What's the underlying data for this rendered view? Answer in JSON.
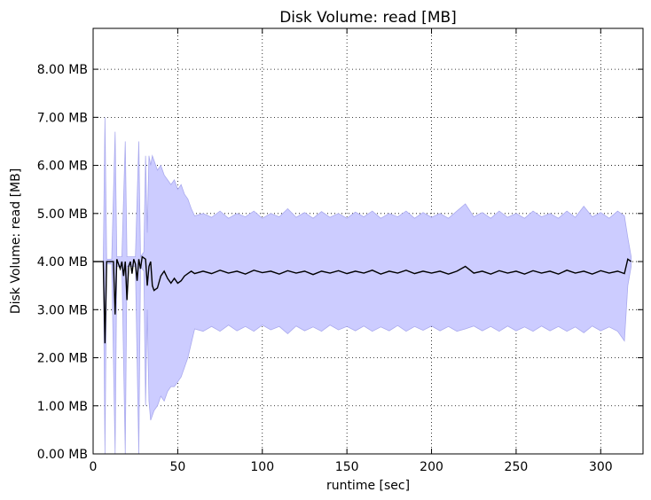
{
  "chart_data": {
    "type": "line",
    "title": "Disk Volume: read [MB]",
    "xlabel": "runtime [sec]",
    "ylabel": "Disk Volume: read [MB]",
    "xlim": [
      0,
      325
    ],
    "ylim": [
      0,
      8.85
    ],
    "xticks": [
      0,
      50,
      100,
      150,
      200,
      250,
      300
    ],
    "xtick_labels": [
      "0",
      "50",
      "100",
      "150",
      "200",
      "250",
      "300"
    ],
    "yticks": [
      0,
      1,
      2,
      3,
      4,
      5,
      6,
      7,
      8
    ],
    "ytick_labels": [
      "0.00 MB",
      "1.00 MB",
      "2.00 MB",
      "3.00 MB",
      "4.00 MB",
      "5.00 MB",
      "6.00 MB",
      "7.00 MB",
      "8.00 MB"
    ],
    "grid": true,
    "series": [
      {
        "role": "mean",
        "color": "#000000",
        "points": [
          [
            0,
            4.0
          ],
          [
            6,
            4.0
          ],
          [
            7,
            2.3
          ],
          [
            8,
            4.0
          ],
          [
            12,
            4.0
          ],
          [
            13,
            2.9
          ],
          [
            14,
            4.05
          ],
          [
            16,
            3.85
          ],
          [
            17,
            4.0
          ],
          [
            18,
            3.7
          ],
          [
            19,
            4.0
          ],
          [
            20,
            3.2
          ],
          [
            21,
            3.9
          ],
          [
            22,
            4.0
          ],
          [
            23,
            3.75
          ],
          [
            24,
            4.05
          ],
          [
            25,
            3.95
          ],
          [
            26,
            3.6
          ],
          [
            27,
            4.05
          ],
          [
            28,
            3.85
          ],
          [
            29,
            4.1
          ],
          [
            31,
            4.05
          ],
          [
            32,
            3.5
          ],
          [
            33,
            3.9
          ],
          [
            34,
            4.0
          ],
          [
            35,
            3.5
          ],
          [
            36,
            3.4
          ],
          [
            38,
            3.45
          ],
          [
            40,
            3.7
          ],
          [
            42,
            3.8
          ],
          [
            44,
            3.65
          ],
          [
            46,
            3.55
          ],
          [
            48,
            3.65
          ],
          [
            50,
            3.55
          ],
          [
            52,
            3.6
          ],
          [
            54,
            3.7
          ],
          [
            56,
            3.75
          ],
          [
            58,
            3.8
          ],
          [
            60,
            3.75
          ],
          [
            65,
            3.8
          ],
          [
            70,
            3.75
          ],
          [
            75,
            3.82
          ],
          [
            80,
            3.76
          ],
          [
            85,
            3.8
          ],
          [
            90,
            3.74
          ],
          [
            95,
            3.82
          ],
          [
            100,
            3.77
          ],
          [
            105,
            3.8
          ],
          [
            110,
            3.74
          ],
          [
            115,
            3.81
          ],
          [
            120,
            3.76
          ],
          [
            125,
            3.8
          ],
          [
            130,
            3.73
          ],
          [
            135,
            3.8
          ],
          [
            140,
            3.76
          ],
          [
            145,
            3.81
          ],
          [
            150,
            3.75
          ],
          [
            155,
            3.8
          ],
          [
            160,
            3.76
          ],
          [
            165,
            3.82
          ],
          [
            170,
            3.74
          ],
          [
            175,
            3.8
          ],
          [
            180,
            3.76
          ],
          [
            185,
            3.82
          ],
          [
            190,
            3.75
          ],
          [
            195,
            3.8
          ],
          [
            200,
            3.76
          ],
          [
            205,
            3.8
          ],
          [
            210,
            3.74
          ],
          [
            215,
            3.8
          ],
          [
            220,
            3.9
          ],
          [
            225,
            3.76
          ],
          [
            230,
            3.8
          ],
          [
            235,
            3.74
          ],
          [
            240,
            3.81
          ],
          [
            245,
            3.76
          ],
          [
            250,
            3.8
          ],
          [
            255,
            3.74
          ],
          [
            260,
            3.81
          ],
          [
            265,
            3.76
          ],
          [
            270,
            3.8
          ],
          [
            275,
            3.74
          ],
          [
            280,
            3.82
          ],
          [
            285,
            3.76
          ],
          [
            290,
            3.8
          ],
          [
            295,
            3.74
          ],
          [
            300,
            3.81
          ],
          [
            305,
            3.76
          ],
          [
            310,
            3.8
          ],
          [
            314,
            3.75
          ],
          [
            316,
            4.05
          ],
          [
            318,
            4.0
          ]
        ]
      },
      {
        "role": "band",
        "color": "#ccccff",
        "edge_color": "#aaaaee",
        "upper": [
          [
            0,
            4.0
          ],
          [
            5,
            4.0
          ],
          [
            6,
            4.0
          ],
          [
            7,
            7.0
          ],
          [
            8,
            4.05
          ],
          [
            11,
            4.05
          ],
          [
            13,
            6.7
          ],
          [
            14,
            4.1
          ],
          [
            17,
            4.1
          ],
          [
            19,
            6.5
          ],
          [
            20,
            4.1
          ],
          [
            25,
            4.1
          ],
          [
            27,
            6.5
          ],
          [
            28,
            4.1
          ],
          [
            30,
            4.2
          ],
          [
            31,
            6.2
          ],
          [
            32,
            4.6
          ],
          [
            33,
            6.2
          ],
          [
            34,
            6.0
          ],
          [
            35,
            6.2
          ],
          [
            36,
            6.1
          ],
          [
            38,
            5.9
          ],
          [
            40,
            6.0
          ],
          [
            42,
            5.8
          ],
          [
            44,
            5.7
          ],
          [
            46,
            5.6
          ],
          [
            48,
            5.7
          ],
          [
            50,
            5.5
          ],
          [
            52,
            5.6
          ],
          [
            54,
            5.4
          ],
          [
            56,
            5.3
          ],
          [
            58,
            5.1
          ],
          [
            60,
            4.95
          ],
          [
            65,
            5.0
          ],
          [
            70,
            4.92
          ],
          [
            75,
            5.05
          ],
          [
            80,
            4.9
          ],
          [
            85,
            5.0
          ],
          [
            90,
            4.93
          ],
          [
            95,
            5.05
          ],
          [
            100,
            4.9
          ],
          [
            105,
            5.0
          ],
          [
            110,
            4.93
          ],
          [
            115,
            5.1
          ],
          [
            120,
            4.92
          ],
          [
            125,
            5.02
          ],
          [
            130,
            4.9
          ],
          [
            135,
            5.04
          ],
          [
            140,
            4.92
          ],
          [
            145,
            5.0
          ],
          [
            150,
            4.9
          ],
          [
            155,
            5.03
          ],
          [
            160,
            4.93
          ],
          [
            165,
            5.05
          ],
          [
            170,
            4.9
          ],
          [
            175,
            5.0
          ],
          [
            180,
            4.93
          ],
          [
            185,
            5.05
          ],
          [
            190,
            4.9
          ],
          [
            195,
            5.02
          ],
          [
            200,
            4.92
          ],
          [
            205,
            5.0
          ],
          [
            210,
            4.9
          ],
          [
            215,
            5.05
          ],
          [
            220,
            5.2
          ],
          [
            225,
            4.93
          ],
          [
            230,
            5.02
          ],
          [
            235,
            4.9
          ],
          [
            240,
            5.05
          ],
          [
            245,
            4.92
          ],
          [
            250,
            5.0
          ],
          [
            255,
            4.9
          ],
          [
            260,
            5.05
          ],
          [
            265,
            4.93
          ],
          [
            270,
            5.0
          ],
          [
            275,
            4.9
          ],
          [
            280,
            5.05
          ],
          [
            285,
            4.92
          ],
          [
            290,
            5.15
          ],
          [
            295,
            4.93
          ],
          [
            300,
            5.02
          ],
          [
            305,
            4.9
          ],
          [
            310,
            5.05
          ],
          [
            314,
            4.95
          ],
          [
            316,
            4.5
          ],
          [
            318,
            4.1
          ]
        ],
        "lower": [
          [
            0,
            4.0
          ],
          [
            5,
            4.0
          ],
          [
            6,
            4.0
          ],
          [
            7,
            0.0
          ],
          [
            8,
            3.95
          ],
          [
            11,
            3.95
          ],
          [
            13,
            0.0
          ],
          [
            14,
            3.9
          ],
          [
            17,
            3.9
          ],
          [
            19,
            0.0
          ],
          [
            20,
            3.9
          ],
          [
            25,
            3.9
          ],
          [
            27,
            0.0
          ],
          [
            28,
            3.9
          ],
          [
            30,
            3.8
          ],
          [
            31,
            1.0
          ],
          [
            32,
            3.0
          ],
          [
            33,
            1.1
          ],
          [
            34,
            0.7
          ],
          [
            35,
            0.8
          ],
          [
            36,
            0.9
          ],
          [
            38,
            1.0
          ],
          [
            40,
            1.2
          ],
          [
            42,
            1.1
          ],
          [
            44,
            1.3
          ],
          [
            46,
            1.4
          ],
          [
            48,
            1.4
          ],
          [
            50,
            1.5
          ],
          [
            52,
            1.6
          ],
          [
            54,
            1.8
          ],
          [
            56,
            2.0
          ],
          [
            58,
            2.3
          ],
          [
            60,
            2.6
          ],
          [
            65,
            2.55
          ],
          [
            70,
            2.65
          ],
          [
            75,
            2.55
          ],
          [
            80,
            2.68
          ],
          [
            85,
            2.56
          ],
          [
            90,
            2.65
          ],
          [
            95,
            2.55
          ],
          [
            100,
            2.68
          ],
          [
            105,
            2.58
          ],
          [
            110,
            2.65
          ],
          [
            115,
            2.5
          ],
          [
            120,
            2.66
          ],
          [
            125,
            2.56
          ],
          [
            130,
            2.64
          ],
          [
            135,
            2.55
          ],
          [
            140,
            2.68
          ],
          [
            145,
            2.58
          ],
          [
            150,
            2.65
          ],
          [
            155,
            2.56
          ],
          [
            160,
            2.66
          ],
          [
            165,
            2.55
          ],
          [
            170,
            2.64
          ],
          [
            175,
            2.56
          ],
          [
            180,
            2.67
          ],
          [
            185,
            2.55
          ],
          [
            190,
            2.65
          ],
          [
            195,
            2.57
          ],
          [
            200,
            2.66
          ],
          [
            205,
            2.56
          ],
          [
            210,
            2.65
          ],
          [
            215,
            2.55
          ],
          [
            220,
            2.6
          ],
          [
            225,
            2.66
          ],
          [
            230,
            2.56
          ],
          [
            235,
            2.65
          ],
          [
            240,
            2.55
          ],
          [
            245,
            2.66
          ],
          [
            250,
            2.56
          ],
          [
            255,
            2.64
          ],
          [
            260,
            2.55
          ],
          [
            265,
            2.66
          ],
          [
            270,
            2.56
          ],
          [
            275,
            2.65
          ],
          [
            280,
            2.55
          ],
          [
            285,
            2.64
          ],
          [
            290,
            2.52
          ],
          [
            295,
            2.66
          ],
          [
            300,
            2.56
          ],
          [
            305,
            2.64
          ],
          [
            310,
            2.55
          ],
          [
            314,
            2.35
          ],
          [
            316,
            3.5
          ],
          [
            318,
            3.9
          ]
        ]
      }
    ]
  }
}
